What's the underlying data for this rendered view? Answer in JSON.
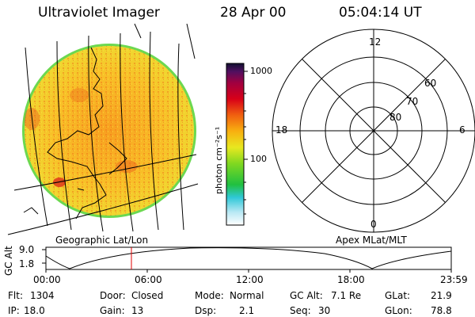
{
  "header": {
    "title": "Ultraviolet Imager",
    "date": "28 Apr 00",
    "time": "05:04:14 UT"
  },
  "colorbar": {
    "unit_label": "photon cm⁻²s⁻¹",
    "ticks": [
      "1000",
      "100"
    ]
  },
  "polar_plot": {
    "mlt_labels": [
      "12",
      "18",
      "6",
      "0"
    ],
    "lat_labels": [
      "60",
      "70",
      "80"
    ]
  },
  "coords": {
    "left_label": "Geographic Lat/Lon",
    "right_label": "Apex MLat/MLT"
  },
  "altitude_plot": {
    "ylabel": "GC Alt",
    "yticks": [
      "9.0",
      "1.8"
    ],
    "xticks": [
      "00:00",
      "06:00",
      "12:00",
      "18:00",
      "23:59"
    ],
    "current_time_marker": "05:04",
    "colors": {
      "marker": "#e00000",
      "curve": "#000000"
    }
  },
  "status": {
    "flt_label": "Flt:",
    "flt_value": "1304",
    "ip_label": "IP:",
    "ip_value": "18.0",
    "door_label": "Door:",
    "door_value": "Closed",
    "gain_label": "Gain:",
    "gain_value": "13",
    "mode_label": "Mode:",
    "mode_value": "Normal",
    "dsp_label": "Dsp:",
    "dsp_value": "2.1",
    "gcalt_label": "GC Alt:",
    "gcalt_value": "7.1 Re",
    "seq_label": "Seq:",
    "seq_value": "30",
    "glat_label": "GLat:",
    "glat_value": "21.9",
    "glon_label": "GLon:",
    "glon_value": "78.8"
  }
}
